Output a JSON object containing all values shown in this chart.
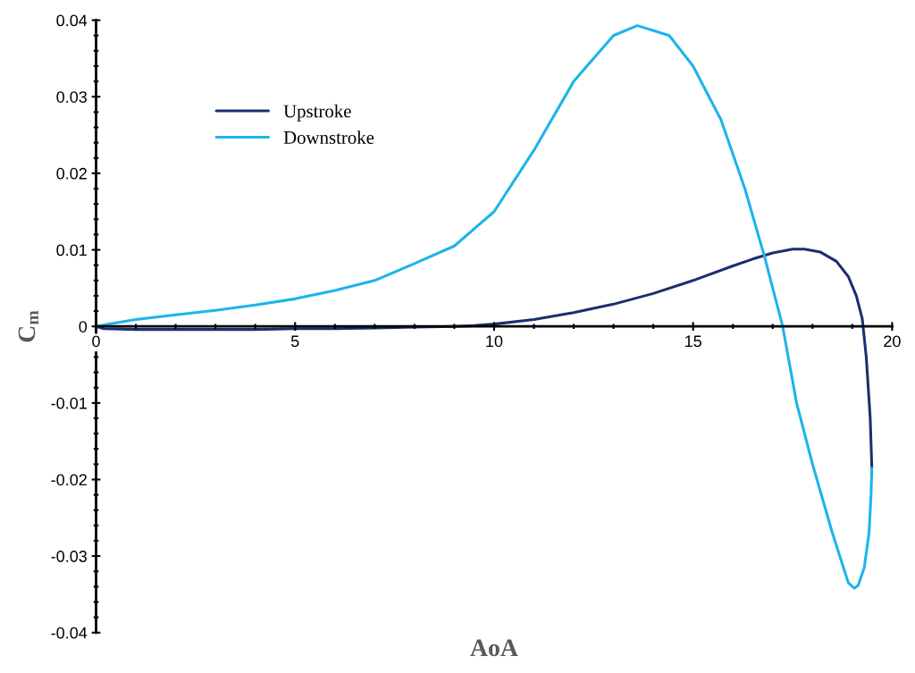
{
  "chart_data": {
    "type": "line",
    "xlabel": "AoA",
    "ylabel": "C$_{m}$",
    "xlim": [
      0,
      20
    ],
    "xticks": [
      0,
      5,
      10,
      15,
      20
    ],
    "ylim": [
      -0.04,
      0.04
    ],
    "yticks": [
      -0.04,
      -0.03,
      -0.02,
      -0.01,
      0,
      0.01,
      0.02,
      0.03,
      0.04
    ],
    "grid": false,
    "legend": "top left",
    "marker": "none",
    "line_style": "solid",
    "series": [
      {
        "name": "Upstroke",
        "color": "#1b2f6e",
        "x": [
          0,
          0.2,
          1,
          2,
          3,
          4,
          5,
          6,
          7,
          8,
          9,
          9.5,
          10,
          11,
          12,
          13,
          14,
          15,
          16,
          16.5,
          17,
          17.5,
          17.8,
          18.2,
          18.6,
          18.9,
          19.1,
          19.25,
          19.35,
          19.45,
          19.49
        ],
        "values": [
          0,
          -0.0003,
          -0.0004,
          -0.0004,
          -0.0004,
          -0.0004,
          -0.0003,
          -0.0003,
          -0.0002,
          -0.0001,
          0,
          0.0001,
          0.0003,
          0.0009,
          0.0018,
          0.0029,
          0.0043,
          0.006,
          0.0079,
          0.0088,
          0.0096,
          0.0101,
          0.0101,
          0.0097,
          0.0085,
          0.0065,
          0.004,
          0.001,
          -0.004,
          -0.012,
          -0.0185
        ]
      },
      {
        "name": "Downstroke",
        "color": "#1cb4ea",
        "x": [
          19.49,
          19.47,
          19.42,
          19.3,
          19.15,
          19.05,
          18.9,
          18.5,
          18.0,
          17.6,
          17.25,
          16.8,
          16.3,
          15.7,
          15.0,
          14.4,
          13.6,
          13.0,
          12.0,
          11.0,
          10.0,
          9.0,
          8.0,
          7.0,
          6.0,
          5.0,
          4.0,
          3.0,
          2.0,
          1.0,
          0.3,
          0
        ],
        "values": [
          -0.0185,
          -0.022,
          -0.027,
          -0.0315,
          -0.0338,
          -0.0342,
          -0.0335,
          -0.027,
          -0.018,
          -0.01,
          0,
          0.009,
          0.018,
          0.027,
          0.034,
          0.038,
          0.0393,
          0.038,
          0.032,
          0.023,
          0.015,
          0.0105,
          0.0082,
          0.006,
          0.0047,
          0.0036,
          0.0028,
          0.0021,
          0.0015,
          0.0009,
          0.0003,
          0
        ]
      }
    ]
  }
}
